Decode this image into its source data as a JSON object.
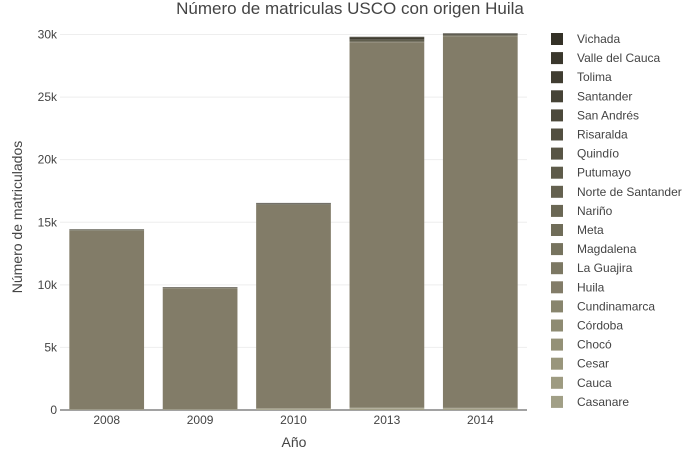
{
  "chart_data": {
    "type": "bar",
    "stacked": true,
    "title": "Número de matriculas USCO con origen Huila",
    "xlabel": "Año",
    "ylabel": "Número de matriculados",
    "categories": [
      "2008",
      "2009",
      "2010",
      "2013",
      "2014"
    ],
    "ylim": [
      0,
      31000
    ],
    "yticks": [
      0,
      5000,
      10000,
      15000,
      20000,
      25000,
      30000
    ],
    "ytick_labels": [
      "0",
      "5k",
      "10k",
      "15k",
      "20k",
      "25k",
      "30k"
    ],
    "grid": true,
    "legend_position": "right",
    "series": [
      {
        "name": "Casanare",
        "color": "#a19f86",
        "values": [
          30,
          30,
          60,
          90,
          80
        ]
      },
      {
        "name": "Cauca",
        "color": "#9e9b81",
        "values": [
          10,
          10,
          20,
          40,
          30
        ]
      },
      {
        "name": "Cesar",
        "color": "#99967c",
        "values": [
          5,
          5,
          5,
          10,
          10
        ]
      },
      {
        "name": "Chocó",
        "color": "#949177",
        "values": [
          5,
          5,
          5,
          10,
          10
        ]
      },
      {
        "name": "Córdoba",
        "color": "#8e8b72",
        "values": [
          5,
          5,
          10,
          10,
          10
        ]
      },
      {
        "name": "Cundinamarca",
        "color": "#88856d",
        "values": [
          20,
          20,
          30,
          60,
          50
        ]
      },
      {
        "name": "Huila",
        "color": "#827c68",
        "values": [
          14250,
          9650,
          16250,
          29150,
          29650
        ]
      },
      {
        "name": "La Guajira",
        "color": "#7c7863",
        "values": [
          5,
          5,
          5,
          10,
          10
        ]
      },
      {
        "name": "Magdalena",
        "color": "#76735e",
        "values": [
          5,
          5,
          5,
          10,
          10
        ]
      },
      {
        "name": "Meta",
        "color": "#706d59",
        "values": [
          5,
          5,
          10,
          20,
          20
        ]
      },
      {
        "name": "Nariño",
        "color": "#6a6754",
        "values": [
          5,
          5,
          10,
          20,
          20
        ]
      },
      {
        "name": "Norte de Santander",
        "color": "#64614f",
        "values": [
          5,
          5,
          5,
          10,
          10
        ]
      },
      {
        "name": "Putumayo",
        "color": "#5e5b4a",
        "values": [
          30,
          20,
          40,
          120,
          50
        ]
      },
      {
        "name": "Quindío",
        "color": "#585545",
        "values": [
          5,
          5,
          5,
          10,
          10
        ]
      },
      {
        "name": "Risaralda",
        "color": "#524f40",
        "values": [
          5,
          5,
          5,
          10,
          10
        ]
      },
      {
        "name": "San Andrés",
        "color": "#4c493b",
        "values": [
          5,
          5,
          5,
          10,
          10
        ]
      },
      {
        "name": "Santander",
        "color": "#464336",
        "values": [
          5,
          5,
          10,
          10,
          10
        ]
      },
      {
        "name": "Tolima",
        "color": "#403d31",
        "values": [
          30,
          20,
          40,
          180,
          60
        ]
      },
      {
        "name": "Valle del Cauca",
        "color": "#3a372c",
        "values": [
          10,
          10,
          20,
          30,
          30
        ]
      },
      {
        "name": "Vichada",
        "color": "#343127",
        "values": [
          5,
          5,
          5,
          10,
          10
        ]
      }
    ]
  }
}
